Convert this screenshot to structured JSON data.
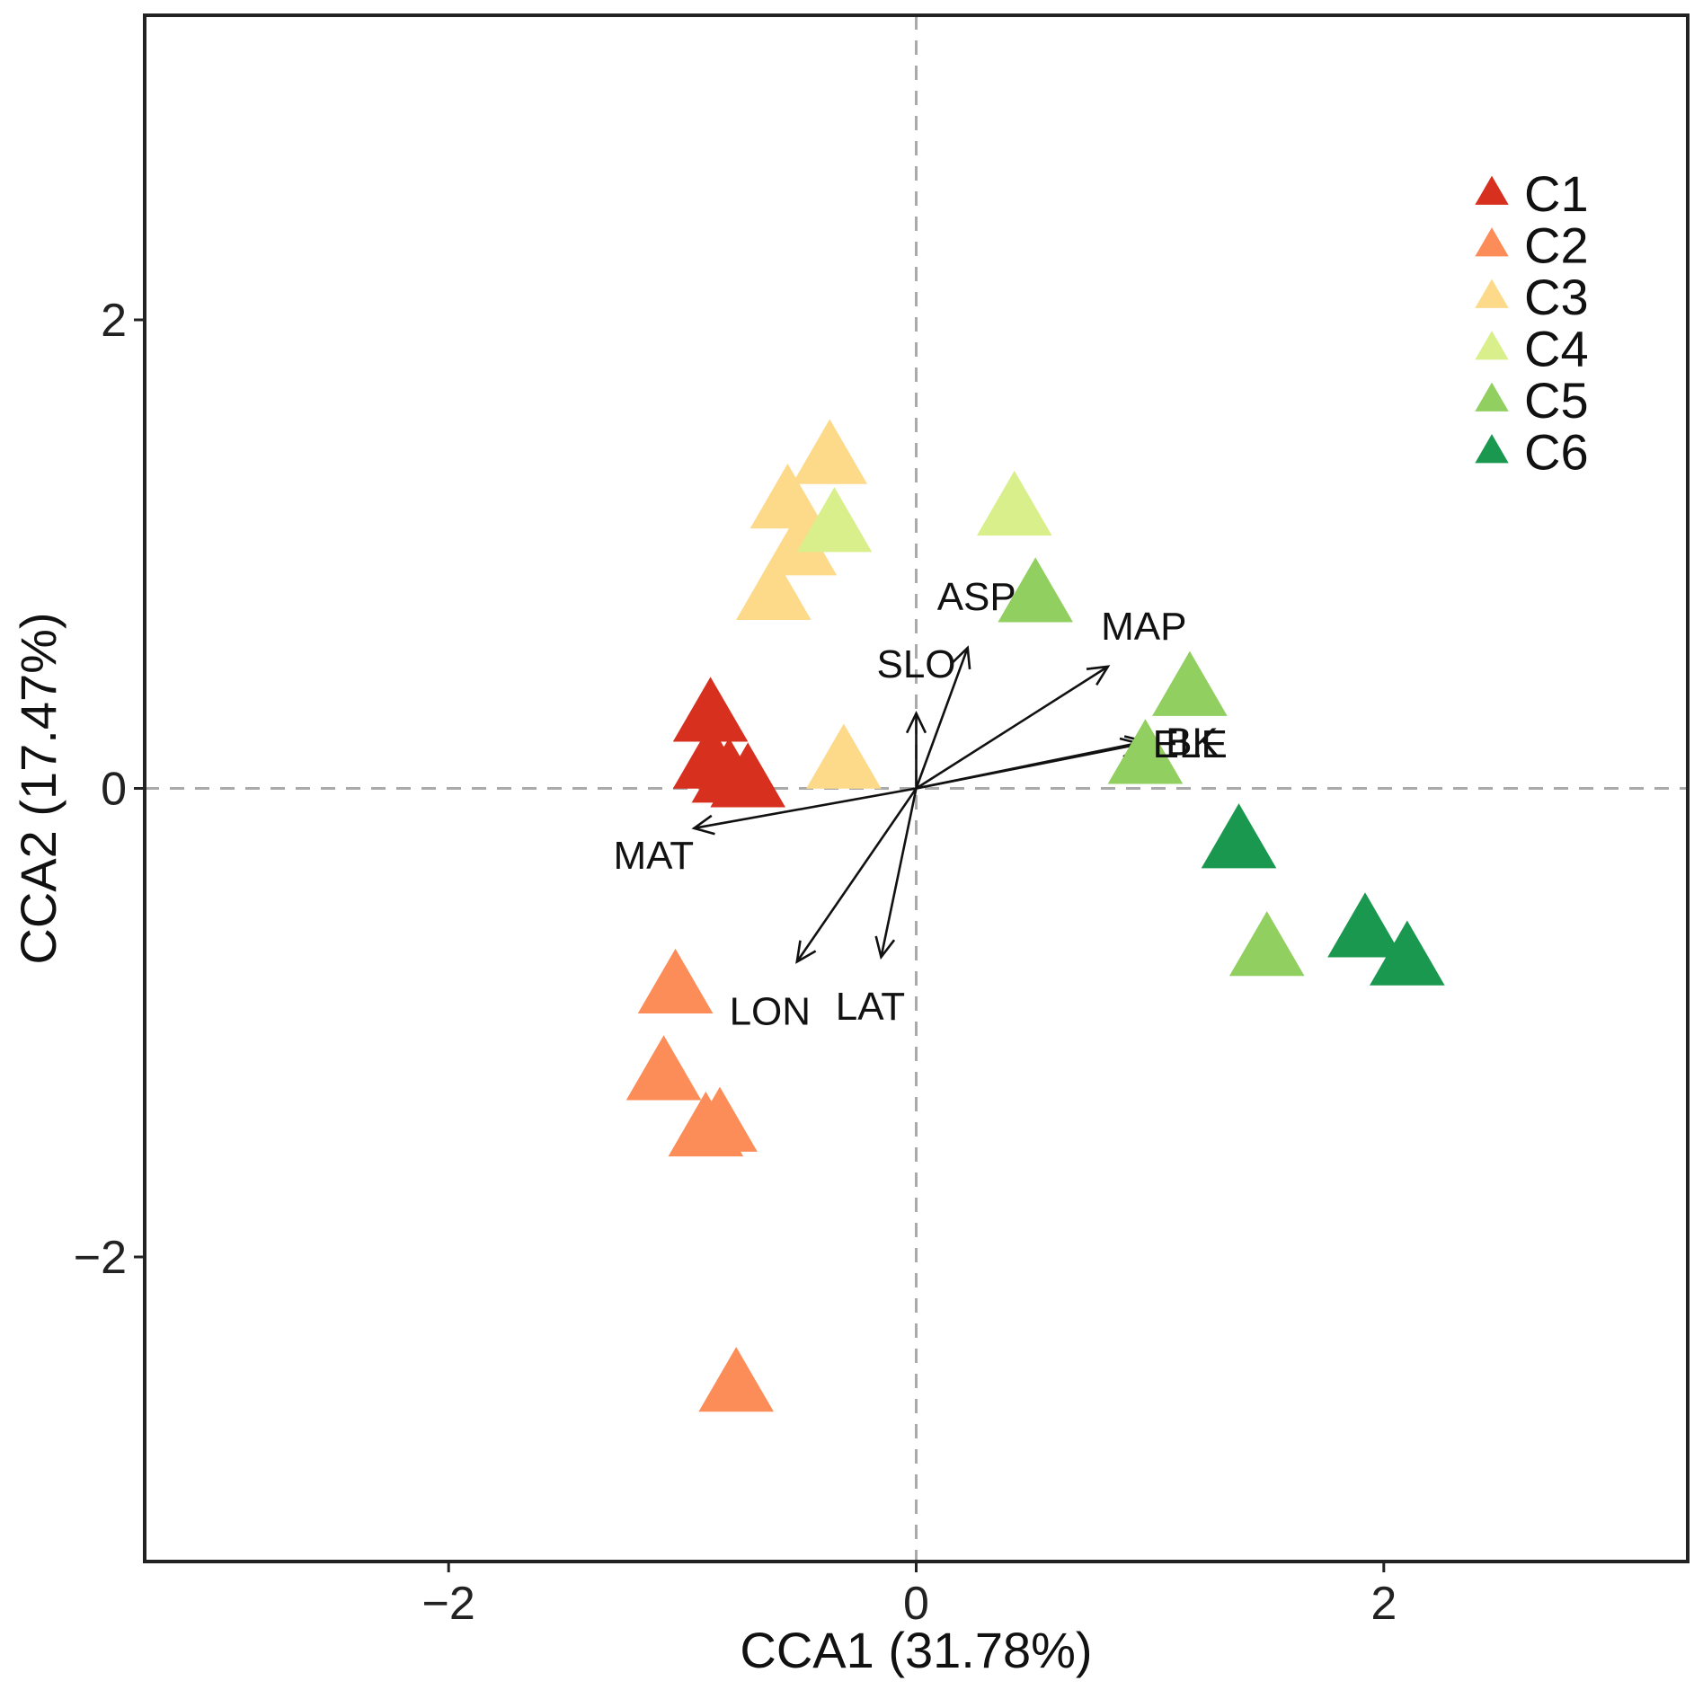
{
  "chart_data": {
    "type": "scatter",
    "title": "",
    "xlabel": "CCA1 (31.78%)",
    "ylabel": "CCA2 (17.47%)",
    "xlim": [
      -3.3,
      3.3
    ],
    "ylim": [
      -3.3,
      3.3
    ],
    "xticks": [
      -2,
      0,
      2
    ],
    "yticks": [
      -2,
      0,
      2
    ],
    "xtick_labels": [
      "−2",
      "0",
      "2"
    ],
    "ytick_labels": [
      "−2",
      "0",
      "2"
    ],
    "grid": false,
    "reference_lines": {
      "x": 0,
      "y": 0,
      "style": "dashed"
    },
    "legend_position": "top-right",
    "marker": "triangle",
    "series": [
      {
        "name": "C1",
        "color": "#D7301F",
        "points": [
          [
            -0.88,
            0.31
          ],
          [
            -0.88,
            0.11
          ],
          [
            -0.72,
            0.03
          ],
          [
            -0.8,
            0.05
          ]
        ]
      },
      {
        "name": "C2",
        "color": "#FC8D59",
        "points": [
          [
            -1.03,
            -0.85
          ],
          [
            -1.08,
            -1.22
          ],
          [
            -0.84,
            -1.44
          ],
          [
            -0.9,
            -1.46
          ],
          [
            -0.77,
            -2.55
          ]
        ]
      },
      {
        "name": "C3",
        "color": "#FDD98A",
        "points": [
          [
            -0.37,
            1.41
          ],
          [
            -0.55,
            1.22
          ],
          [
            -0.5,
            1.02
          ],
          [
            -0.61,
            0.83
          ],
          [
            -0.31,
            0.11
          ]
        ]
      },
      {
        "name": "C4",
        "color": "#D9EF8B",
        "points": [
          [
            -0.35,
            1.12
          ],
          [
            0.42,
            1.19
          ]
        ]
      },
      {
        "name": "C5",
        "color": "#91CF60",
        "points": [
          [
            0.51,
            0.82
          ],
          [
            1.17,
            0.42
          ],
          [
            0.98,
            0.13
          ],
          [
            1.5,
            -0.69
          ]
        ]
      },
      {
        "name": "C6",
        "color": "#1A9850",
        "points": [
          [
            1.38,
            -0.23
          ],
          [
            1.92,
            -0.61
          ],
          [
            2.1,
            -0.73
          ]
        ]
      }
    ],
    "vectors": [
      {
        "label": "MAT",
        "x": -0.95,
        "y": -0.17
      },
      {
        "label": "ASP",
        "x": 0.22,
        "y": 0.6
      },
      {
        "label": "SLO",
        "x": 0.0,
        "y": 0.32
      },
      {
        "label": "MAP",
        "x": 0.82,
        "y": 0.52
      },
      {
        "label": "ELE",
        "x": 0.96,
        "y": 0.19
      },
      {
        "label": "BK",
        "x": 0.98,
        "y": 0.2
      },
      {
        "label": "LON",
        "x": -0.51,
        "y": -0.74
      },
      {
        "label": "LAT",
        "x": -0.15,
        "y": -0.72
      }
    ],
    "vector_label_text": {
      "MAT": "MAT",
      "ASP": "ASP",
      "SLO": "SLO",
      "MAP": "MAP",
      "ELE": "ELE",
      "BK": "BK",
      "LON": "LON",
      "LAT": "LAT"
    }
  }
}
